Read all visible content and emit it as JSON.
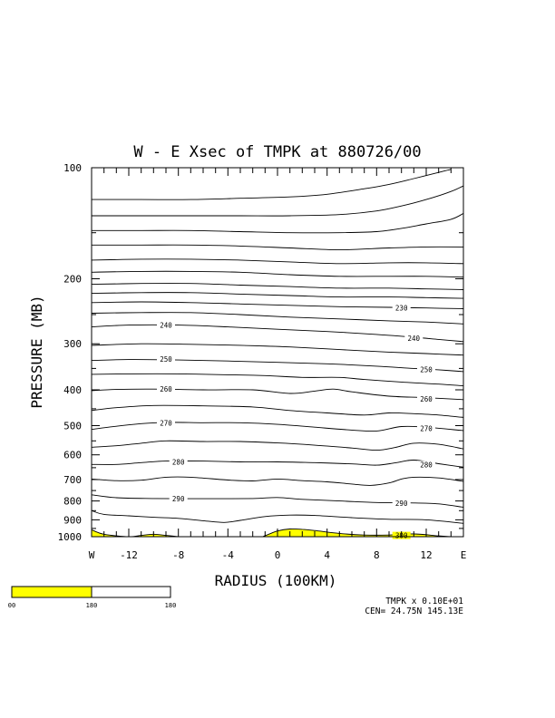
{
  "chart_data": {
    "type": "contour",
    "title": "W - E Xsec of TMPK at 880726/00",
    "xlabel": "RADIUS (100KM)",
    "ylabel": "PRESSURE (MB)",
    "xlim": [
      -15,
      15
    ],
    "ylim": [
      1000,
      100
    ],
    "yscale": "log",
    "x_ticks": [
      {
        "label": "W",
        "value": -15
      },
      {
        "label": "-12",
        "value": -12
      },
      {
        "label": "-8",
        "value": -8
      },
      {
        "label": "-4",
        "value": -4
      },
      {
        "label": "0",
        "value": 0
      },
      {
        "label": "4",
        "value": 4
      },
      {
        "label": "8",
        "value": 8
      },
      {
        "label": "12",
        "value": 12
      },
      {
        "label": "E",
        "value": 15
      }
    ],
    "y_ticks": [
      "100",
      "200",
      "300",
      "400",
      "500",
      "600",
      "700",
      "800",
      "900",
      "1000"
    ],
    "contour_interval": 5,
    "contours": [
      {
        "level": 300,
        "label": "300",
        "label_at": [
          10,
          992
        ],
        "shaded": true,
        "points": [
          [
            -15,
            958
          ],
          [
            -14,
            985
          ],
          [
            -12,
            1000
          ],
          [
            -11,
            992
          ],
          [
            -10,
            985
          ],
          [
            -9,
            992
          ],
          [
            -8,
            1000
          ],
          [
            -7,
            1012
          ],
          [
            -2,
            1012
          ],
          [
            -1,
            993
          ],
          [
            0,
            965
          ],
          [
            1,
            953
          ],
          [
            2,
            955
          ],
          [
            3,
            962
          ],
          [
            5,
            980
          ],
          [
            7,
            990
          ],
          [
            9,
            990
          ],
          [
            11,
            983
          ],
          [
            13,
            995
          ],
          [
            14,
            1000
          ],
          [
            15,
            1010
          ]
        ]
      },
      {
        "level": 295,
        "points": [
          [
            -15,
            850
          ],
          [
            -14,
            870
          ],
          [
            -12,
            878
          ],
          [
            -10,
            886
          ],
          [
            -8,
            892
          ],
          [
            -6,
            905
          ],
          [
            -4.3,
            915
          ],
          [
            -3,
            903
          ],
          [
            -1,
            882
          ],
          [
            1,
            874
          ],
          [
            3,
            876
          ],
          [
            6,
            888
          ],
          [
            9,
            897
          ],
          [
            12,
            900
          ],
          [
            15,
            920
          ]
        ]
      },
      {
        "level": 290,
        "label": "290",
        "label_at": [
          -8,
          788
        ],
        "label2": "290",
        "label2_at": [
          10,
          810
        ],
        "points": [
          [
            -15,
            770
          ],
          [
            -13,
            784
          ],
          [
            -10,
            788
          ],
          [
            -6,
            789
          ],
          [
            -2,
            788
          ],
          [
            0,
            783
          ],
          [
            2,
            792
          ],
          [
            5,
            800
          ],
          [
            8,
            808
          ],
          [
            11,
            810
          ],
          [
            13,
            815
          ],
          [
            15,
            832
          ]
        ]
      },
      {
        "level": 285,
        "points": [
          [
            -15,
            698
          ],
          [
            -13,
            705
          ],
          [
            -11,
            703
          ],
          [
            -9,
            690
          ],
          [
            -7,
            690
          ],
          [
            -4,
            702
          ],
          [
            -2,
            706
          ],
          [
            0,
            698
          ],
          [
            2,
            705
          ],
          [
            4,
            710
          ],
          [
            6,
            720
          ],
          [
            7.5,
            726
          ],
          [
            9,
            715
          ],
          [
            10,
            698
          ],
          [
            11,
            690
          ],
          [
            13,
            693
          ],
          [
            15,
            708
          ]
        ]
      },
      {
        "level": 280,
        "label": "280",
        "label_at": [
          -8,
          627
        ],
        "label2": "280",
        "label2_at": [
          12,
          637
        ],
        "points": [
          [
            -15,
            637
          ],
          [
            -13,
            637
          ],
          [
            -11,
            630
          ],
          [
            -9,
            624
          ],
          [
            -6,
            624
          ],
          [
            -3,
            627
          ],
          [
            0,
            627
          ],
          [
            3,
            630
          ],
          [
            6,
            635
          ],
          [
            8,
            640
          ],
          [
            9.5,
            631
          ],
          [
            11,
            620
          ],
          [
            13,
            634
          ],
          [
            15,
            648
          ]
        ]
      },
      {
        "level": 275,
        "points": [
          [
            -15,
            572
          ],
          [
            -13,
            567
          ],
          [
            -11,
            558
          ],
          [
            -9,
            550
          ],
          [
            -6,
            552
          ],
          [
            -3,
            552
          ],
          [
            0,
            557
          ],
          [
            3,
            565
          ],
          [
            6,
            575
          ],
          [
            8,
            583
          ],
          [
            9.5,
            573
          ],
          [
            11,
            558
          ],
          [
            13,
            562
          ],
          [
            15,
            578
          ]
        ]
      },
      {
        "level": 270,
        "label": "270",
        "label_at": [
          -9,
          492
        ],
        "label2": "270",
        "label2_at": [
          12,
          508
        ],
        "points": [
          [
            -15,
            512
          ],
          [
            -13,
            502
          ],
          [
            -11,
            494
          ],
          [
            -9,
            490
          ],
          [
            -6,
            491
          ],
          [
            -3,
            491
          ],
          [
            0,
            496
          ],
          [
            3,
            505
          ],
          [
            6,
            514
          ],
          [
            8,
            517
          ],
          [
            10,
            503
          ],
          [
            12,
            505
          ],
          [
            15,
            516
          ]
        ]
      },
      {
        "level": 265,
        "points": [
          [
            -15,
            455
          ],
          [
            -13,
            447
          ],
          [
            -10,
            441
          ],
          [
            -6,
            442
          ],
          [
            -2,
            445
          ],
          [
            1,
            455
          ],
          [
            4,
            462
          ],
          [
            7,
            468
          ],
          [
            9,
            462
          ],
          [
            11,
            464
          ],
          [
            13,
            468
          ],
          [
            15,
            475
          ]
        ]
      },
      {
        "level": 260,
        "label": "260",
        "label_at": [
          -9,
          398
        ],
        "label2": "260",
        "label2_at": [
          12,
          423
        ],
        "points": [
          [
            -15,
            402
          ],
          [
            -13,
            399
          ],
          [
            -10,
            398
          ],
          [
            -6,
            400
          ],
          [
            -2,
            400
          ],
          [
            1,
            409
          ],
          [
            3,
            403
          ],
          [
            4.5,
            398
          ],
          [
            6,
            405
          ],
          [
            9,
            416
          ],
          [
            12,
            420
          ],
          [
            15,
            425
          ]
        ]
      },
      {
        "level": 255,
        "points": [
          [
            -15,
            363
          ],
          [
            -12,
            362
          ],
          [
            -8,
            362
          ],
          [
            -4,
            364
          ],
          [
            -1,
            366
          ],
          [
            2,
            370
          ],
          [
            5,
            370
          ],
          [
            7,
            375
          ],
          [
            10,
            381
          ],
          [
            13,
            386
          ],
          [
            15,
            390
          ]
        ]
      },
      {
        "level": 250,
        "label": "250",
        "label_at": [
          -9,
          330
        ],
        "label2": "250",
        "label2_at": [
          12,
          352
        ],
        "points": [
          [
            -15,
            333
          ],
          [
            -12,
            331
          ],
          [
            -8,
            332
          ],
          [
            -4,
            334
          ],
          [
            0,
            337
          ],
          [
            4,
            340
          ],
          [
            8,
            345
          ],
          [
            11,
            350
          ],
          [
            13,
            353
          ],
          [
            15,
            357
          ]
        ]
      },
      {
        "level": 245,
        "points": [
          [
            -15,
            303
          ],
          [
            -11,
            300
          ],
          [
            -7,
            301
          ],
          [
            -3,
            303
          ],
          [
            1,
            306
          ],
          [
            5,
            311
          ],
          [
            9,
            316
          ],
          [
            12,
            319
          ],
          [
            15,
            322
          ]
        ]
      },
      {
        "level": 240,
        "label": "240",
        "label_at": [
          -9,
          267
        ],
        "label2": "240",
        "label2_at": [
          11,
          290
        ],
        "points": [
          [
            -15,
            270
          ],
          [
            -12,
            267
          ],
          [
            -8,
            267
          ],
          [
            -4,
            270
          ],
          [
            0,
            274
          ],
          [
            4,
            278
          ],
          [
            8,
            283
          ],
          [
            11,
            288
          ],
          [
            13,
            292
          ],
          [
            15,
            296
          ]
        ]
      },
      {
        "level": 235,
        "points": [
          [
            -15,
            248
          ],
          [
            -11,
            247
          ],
          [
            -7,
            247
          ],
          [
            -3,
            250
          ],
          [
            1,
            254
          ],
          [
            5,
            257
          ],
          [
            9,
            260
          ],
          [
            12,
            262
          ],
          [
            15,
            265
          ]
        ]
      },
      {
        "level": 230,
        "label": "230",
        "label_at": [
          10,
          240
        ],
        "points": [
          [
            -15,
            232
          ],
          [
            -11,
            231
          ],
          [
            -7,
            232
          ],
          [
            -3,
            234
          ],
          [
            1,
            236
          ],
          [
            5,
            238
          ],
          [
            9,
            239
          ],
          [
            12,
            240
          ],
          [
            15,
            241
          ]
        ]
      },
      {
        "level": 225,
        "points": [
          [
            -15,
            219
          ],
          [
            -11,
            218
          ],
          [
            -7,
            218
          ],
          [
            -3,
            220
          ],
          [
            1,
            222
          ],
          [
            5,
            224
          ],
          [
            9,
            224
          ],
          [
            12,
            225
          ],
          [
            15,
            226
          ]
        ]
      },
      {
        "level": 220,
        "points": [
          [
            -15,
            207
          ],
          [
            -11,
            206
          ],
          [
            -7,
            206
          ],
          [
            -3,
            208
          ],
          [
            1,
            210
          ],
          [
            5,
            212
          ],
          [
            9,
            212
          ],
          [
            12,
            213
          ],
          [
            15,
            214
          ]
        ]
      },
      {
        "level": 215,
        "points": [
          [
            -15,
            192
          ],
          [
            -11,
            191
          ],
          [
            -7,
            191
          ],
          [
            -3,
            192
          ],
          [
            1,
            195
          ],
          [
            5,
            197
          ],
          [
            9,
            197
          ],
          [
            12,
            197
          ],
          [
            15,
            198
          ]
        ]
      },
      {
        "level": 210,
        "points": [
          [
            -15,
            178
          ],
          [
            -11,
            177
          ],
          [
            -7,
            177
          ],
          [
            -3,
            178
          ],
          [
            1,
            180
          ],
          [
            5,
            182
          ],
          [
            9,
            181
          ],
          [
            12,
            181
          ],
          [
            15,
            182
          ]
        ]
      },
      {
        "level": 205,
        "points": [
          [
            -15,
            162
          ],
          [
            -11,
            162
          ],
          [
            -7,
            162
          ],
          [
            -3,
            163
          ],
          [
            1,
            165
          ],
          [
            5,
            167
          ],
          [
            9,
            165
          ],
          [
            12,
            164
          ],
          [
            15,
            164
          ]
        ]
      },
      {
        "level": 200,
        "points": [
          [
            -15,
            148
          ],
          [
            -11,
            148
          ],
          [
            -7,
            148
          ],
          [
            -3,
            149
          ],
          [
            1,
            150
          ],
          [
            5,
            150
          ],
          [
            8,
            149
          ],
          [
            10,
            146
          ],
          [
            12,
            142
          ],
          [
            14,
            138
          ],
          [
            15,
            133
          ]
        ]
      },
      {
        "level": 195,
        "points": [
          [
            -15,
            135
          ],
          [
            -11,
            135
          ],
          [
            -7,
            135
          ],
          [
            -3,
            135
          ],
          [
            1,
            135
          ],
          [
            5,
            134
          ],
          [
            8,
            131
          ],
          [
            10,
            127
          ],
          [
            12,
            122
          ],
          [
            14,
            116
          ],
          [
            15,
            112
          ]
        ]
      },
      {
        "level": 190,
        "points": [
          [
            -15,
            122
          ],
          [
            -11,
            122
          ],
          [
            -7,
            122
          ],
          [
            -3,
            121
          ],
          [
            1,
            120
          ],
          [
            4,
            118
          ],
          [
            7,
            114
          ],
          [
            9,
            111
          ],
          [
            11,
            107
          ],
          [
            13,
            103
          ],
          [
            14,
            101
          ]
        ]
      }
    ]
  },
  "colorbar": {
    "labels": [
      "00",
      "180",
      "180"
    ],
    "fill_color": "#ffff00"
  },
  "footer": {
    "line1": "TMPK x  0.10E+01",
    "line2": "CEN= 24.75N  145.13E"
  }
}
